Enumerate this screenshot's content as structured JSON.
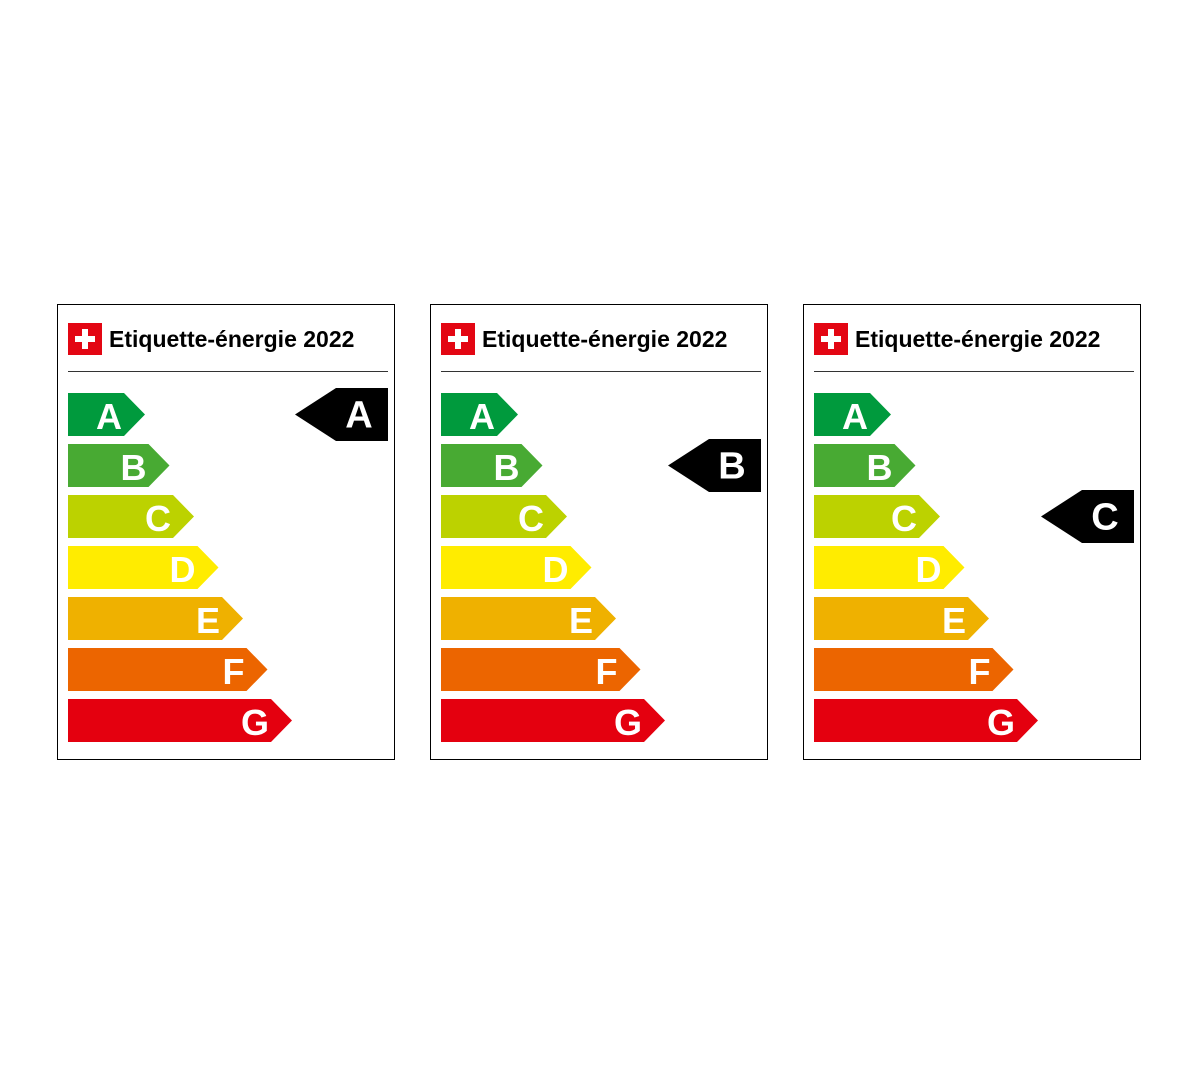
{
  "scale": {
    "classes": [
      {
        "letter": "A",
        "color": "#009a3d"
      },
      {
        "letter": "B",
        "color": "#48aa33"
      },
      {
        "letter": "C",
        "color": "#bcd200"
      },
      {
        "letter": "D",
        "color": "#ffec00"
      },
      {
        "letter": "E",
        "color": "#efb100"
      },
      {
        "letter": "F",
        "color": "#ec6500"
      },
      {
        "letter": "G",
        "color": "#e4000f"
      }
    ]
  },
  "labels": [
    {
      "title": "Etiquette-énergie 2022",
      "rating": "A"
    },
    {
      "title": "Etiquette-énergie 2022",
      "rating": "B"
    },
    {
      "title": "Etiquette-énergie 2022",
      "rating": "C"
    }
  ],
  "colors": {
    "swiss_red": "#e30613",
    "rating_arrow": "#000000"
  }
}
